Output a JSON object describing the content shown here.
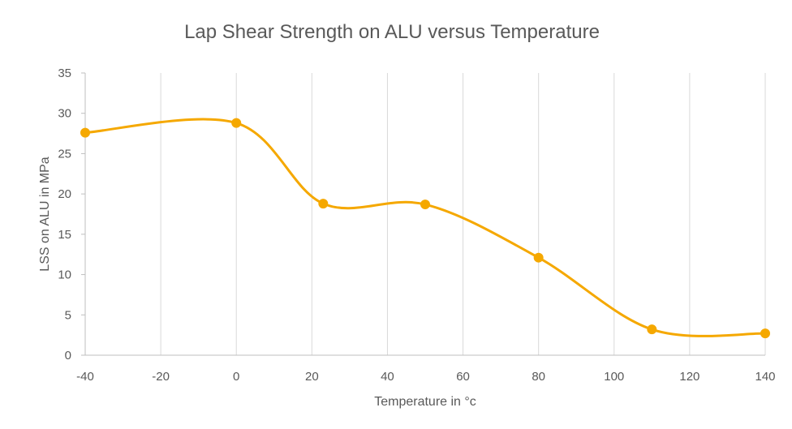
{
  "chart_data": {
    "type": "line",
    "title": "Lap Shear Strength on ALU versus Temperature",
    "xlabel": "Temperature in °c",
    "ylabel": "LSS on ALU in MPa",
    "xlim": [
      -40,
      140
    ],
    "ylim": [
      0,
      35
    ],
    "x_ticks": [
      -40,
      -20,
      0,
      20,
      40,
      60,
      80,
      100,
      120,
      140
    ],
    "y_ticks": [
      0,
      5,
      10,
      15,
      20,
      25,
      30,
      35
    ],
    "grid": "vertical",
    "smooth": true,
    "series": [
      {
        "name": "LSS on ALU",
        "color": "#F5A800",
        "x": [
          -40,
          0,
          23,
          50,
          80,
          110,
          140
        ],
        "y": [
          27.6,
          28.8,
          18.8,
          18.7,
          12.1,
          3.2,
          2.7
        ]
      }
    ]
  }
}
